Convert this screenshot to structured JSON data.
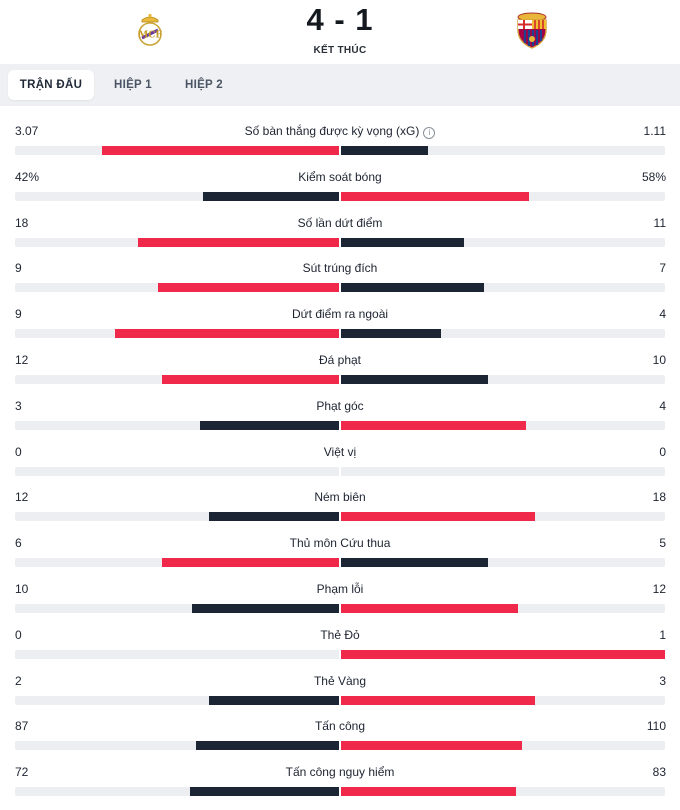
{
  "match": {
    "score": "4 - 1",
    "status": "KẾT THÚC",
    "home_crest": "real-madrid-crest",
    "away_crest": "barcelona-crest"
  },
  "tabs": [
    {
      "label": "TRẬN ĐẤU",
      "active": true
    },
    {
      "label": "HIỆP 1",
      "active": false
    },
    {
      "label": "HIỆP 2",
      "active": false
    }
  ],
  "colors": {
    "winner": "#f0294a",
    "loser": "#1b2533",
    "track": "#eceef1"
  },
  "stats": [
    {
      "label": "Số bàn thắng được kỳ vọng (xG)",
      "home": "3.07",
      "away": "1.11",
      "home_share": 0.73,
      "away_share": 0.27,
      "info": true
    },
    {
      "label": "Kiểm soát bóng",
      "home": "42%",
      "away": "58%",
      "home_share": 0.42,
      "away_share": 0.58
    },
    {
      "label": "Số lần dứt điểm",
      "home": "18",
      "away": "11",
      "home_share": 0.62,
      "away_share": 0.38
    },
    {
      "label": "Sút trúng đích",
      "home": "9",
      "away": "7",
      "home_share": 0.56,
      "away_share": 0.44
    },
    {
      "label": "Dứt điểm ra ngoài",
      "home": "9",
      "away": "4",
      "home_share": 0.69,
      "away_share": 0.31
    },
    {
      "label": "Đá phạt",
      "home": "12",
      "away": "10",
      "home_share": 0.545,
      "away_share": 0.455
    },
    {
      "label": "Phạt góc",
      "home": "3",
      "away": "4",
      "home_share": 0.43,
      "away_share": 0.57
    },
    {
      "label": "Việt vị",
      "home": "0",
      "away": "0",
      "home_share": 0,
      "away_share": 0
    },
    {
      "label": "Ném biên",
      "home": "12",
      "away": "18",
      "home_share": 0.4,
      "away_share": 0.6
    },
    {
      "label": "Thủ môn Cứu thua",
      "home": "6",
      "away": "5",
      "home_share": 0.545,
      "away_share": 0.455
    },
    {
      "label": "Phạm lỗi",
      "home": "10",
      "away": "12",
      "home_share": 0.455,
      "away_share": 0.545
    },
    {
      "label": "Thẻ Đỏ",
      "home": "0",
      "away": "1",
      "home_share": 0,
      "away_share": 1
    },
    {
      "label": "Thẻ Vàng",
      "home": "2",
      "away": "3",
      "home_share": 0.4,
      "away_share": 0.6
    },
    {
      "label": "Tấn công",
      "home": "87",
      "away": "110",
      "home_share": 0.44,
      "away_share": 0.56
    },
    {
      "label": "Tấn công nguy hiểm",
      "home": "72",
      "away": "83",
      "home_share": 0.46,
      "away_share": 0.54
    }
  ]
}
